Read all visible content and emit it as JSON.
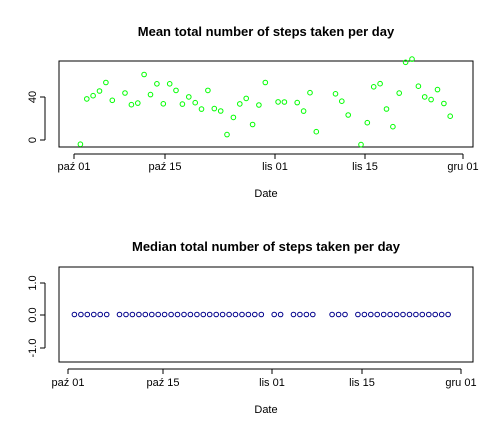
{
  "chart_data": [
    {
      "type": "scatter",
      "title": "Mean total number of steps taken per day",
      "xlabel": "Date",
      "ylabel": "",
      "x_ticks": [
        "paź 01",
        "paź 15",
        "lis 01",
        "lis 15",
        "gru 01"
      ],
      "x_tick_dates": [
        "2012-10-01",
        "2012-10-15",
        "2012-11-01",
        "2012-11-15",
        "2012-12-01"
      ],
      "xlim": [
        "2012-09-30",
        "2012-12-02"
      ],
      "y_ticks": [
        "0",
        "40"
      ],
      "y_tick_values": [
        0,
        40
      ],
      "ylim": [
        -2,
        72
      ],
      "marker": "open-circle",
      "color": "#00ff00",
      "points": [
        [
          "2012-10-02",
          0.4
        ],
        [
          "2012-10-03",
          39.4
        ],
        [
          "2012-10-04",
          42.1
        ],
        [
          "2012-10-05",
          46.2
        ],
        [
          "2012-10-06",
          53.5
        ],
        [
          "2012-10-07",
          38.2
        ],
        [
          "2012-10-09",
          44.5
        ],
        [
          "2012-10-10",
          34.4
        ],
        [
          "2012-10-11",
          35.8
        ],
        [
          "2012-10-12",
          60.4
        ],
        [
          "2012-10-13",
          43.1
        ],
        [
          "2012-10-14",
          52.4
        ],
        [
          "2012-10-15",
          35.2
        ],
        [
          "2012-10-16",
          52.4
        ],
        [
          "2012-10-17",
          46.7
        ],
        [
          "2012-10-18",
          34.9
        ],
        [
          "2012-10-19",
          41.1
        ],
        [
          "2012-10-20",
          36.1
        ],
        [
          "2012-10-21",
          30.6
        ],
        [
          "2012-10-22",
          46.7
        ],
        [
          "2012-10-23",
          31.0
        ],
        [
          "2012-10-24",
          29.0
        ],
        [
          "2012-10-25",
          8.7
        ],
        [
          "2012-10-26",
          23.5
        ],
        [
          "2012-10-27",
          35.1
        ],
        [
          "2012-10-28",
          39.8
        ],
        [
          "2012-10-29",
          17.4
        ],
        [
          "2012-10-30",
          34.1
        ],
        [
          "2012-10-31",
          53.5
        ],
        [
          "2012-11-02",
          36.8
        ],
        [
          "2012-11-03",
          36.7
        ],
        [
          "2012-11-05",
          36.2
        ],
        [
          "2012-11-06",
          28.9
        ],
        [
          "2012-11-07",
          44.7
        ],
        [
          "2012-11-08",
          11.2
        ],
        [
          "2012-11-11",
          43.8
        ],
        [
          "2012-11-12",
          37.4
        ],
        [
          "2012-11-13",
          25.5
        ],
        [
          "2012-11-15",
          0.1
        ],
        [
          "2012-11-16",
          18.9
        ],
        [
          "2012-11-17",
          49.8
        ],
        [
          "2012-11-18",
          52.5
        ],
        [
          "2012-11-19",
          30.7
        ],
        [
          "2012-11-20",
          15.5
        ],
        [
          "2012-11-21",
          44.4
        ],
        [
          "2012-11-22",
          70.9
        ],
        [
          "2012-11-23",
          73.6
        ],
        [
          "2012-11-24",
          50.3
        ],
        [
          "2012-11-25",
          41.1
        ],
        [
          "2012-11-26",
          38.8
        ],
        [
          "2012-11-27",
          47.4
        ],
        [
          "2012-11-28",
          35.4
        ],
        [
          "2012-11-29",
          24.5
        ]
      ]
    },
    {
      "type": "scatter",
      "title": "Median total number of steps taken per day",
      "xlabel": "Date",
      "ylabel": "",
      "x_ticks": [
        "paź 01",
        "paź 15",
        "lis 01",
        "lis 15",
        "gru 01"
      ],
      "x_tick_dates": [
        "2012-10-01",
        "2012-10-15",
        "2012-11-01",
        "2012-11-15",
        "2012-12-01"
      ],
      "xlim": [
        "2012-09-30",
        "2012-12-02"
      ],
      "y_ticks": [
        "-1.0",
        "0.0",
        "1.0"
      ],
      "y_tick_values": [
        -1.0,
        0.0,
        1.0
      ],
      "ylim": [
        -1.08,
        1.08
      ],
      "marker": "open-circle",
      "color": "#00008b",
      "points": [
        [
          "2012-10-02",
          0
        ],
        [
          "2012-10-03",
          0
        ],
        [
          "2012-10-04",
          0
        ],
        [
          "2012-10-05",
          0
        ],
        [
          "2012-10-06",
          0
        ],
        [
          "2012-10-07",
          0
        ],
        [
          "2012-10-09",
          0
        ],
        [
          "2012-10-10",
          0
        ],
        [
          "2012-10-11",
          0
        ],
        [
          "2012-10-12",
          0
        ],
        [
          "2012-10-13",
          0
        ],
        [
          "2012-10-14",
          0
        ],
        [
          "2012-10-15",
          0
        ],
        [
          "2012-10-16",
          0
        ],
        [
          "2012-10-17",
          0
        ],
        [
          "2012-10-18",
          0
        ],
        [
          "2012-10-19",
          0
        ],
        [
          "2012-10-20",
          0
        ],
        [
          "2012-10-21",
          0
        ],
        [
          "2012-10-22",
          0
        ],
        [
          "2012-10-23",
          0
        ],
        [
          "2012-10-24",
          0
        ],
        [
          "2012-10-25",
          0
        ],
        [
          "2012-10-26",
          0
        ],
        [
          "2012-10-27",
          0
        ],
        [
          "2012-10-28",
          0
        ],
        [
          "2012-10-29",
          0
        ],
        [
          "2012-10-30",
          0
        ],
        [
          "2012-10-31",
          0
        ],
        [
          "2012-11-02",
          0
        ],
        [
          "2012-11-03",
          0
        ],
        [
          "2012-11-05",
          0
        ],
        [
          "2012-11-06",
          0
        ],
        [
          "2012-11-07",
          0
        ],
        [
          "2012-11-08",
          0
        ],
        [
          "2012-11-11",
          0
        ],
        [
          "2012-11-12",
          0
        ],
        [
          "2012-11-13",
          0
        ],
        [
          "2012-11-15",
          0
        ],
        [
          "2012-11-16",
          0
        ],
        [
          "2012-11-17",
          0
        ],
        [
          "2012-11-18",
          0
        ],
        [
          "2012-11-19",
          0
        ],
        [
          "2012-11-20",
          0
        ],
        [
          "2012-11-21",
          0
        ],
        [
          "2012-11-22",
          0
        ],
        [
          "2012-11-23",
          0
        ],
        [
          "2012-11-24",
          0
        ],
        [
          "2012-11-25",
          0
        ],
        [
          "2012-11-26",
          0
        ],
        [
          "2012-11-27",
          0
        ],
        [
          "2012-11-28",
          0
        ],
        [
          "2012-11-29",
          0
        ]
      ]
    }
  ]
}
